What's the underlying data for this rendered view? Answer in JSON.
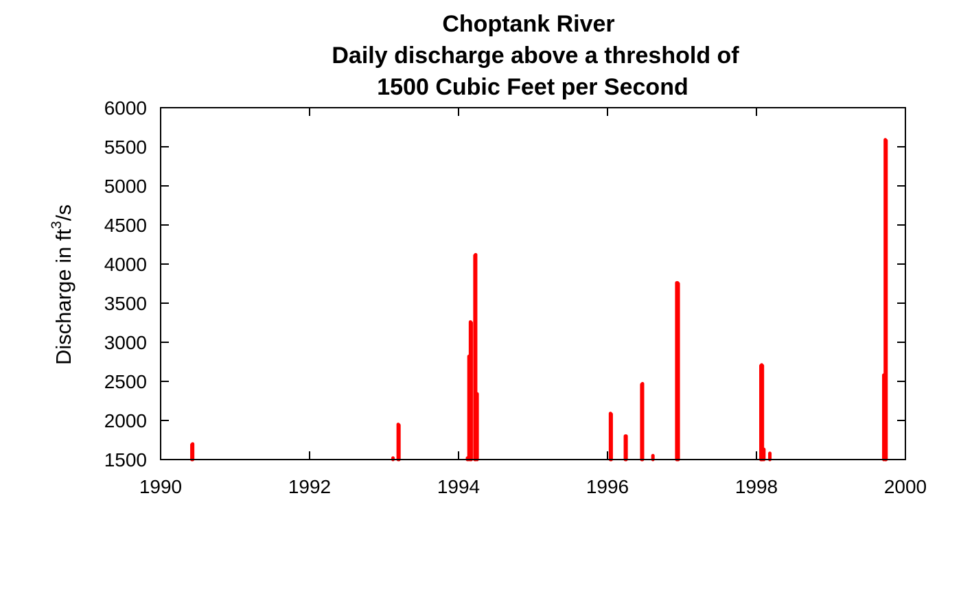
{
  "chart_data": {
    "type": "bar",
    "title_lines": [
      "Choptank River",
      "Daily discharge above a threshold of",
      "1500 Cubic Feet per Second"
    ],
    "ylabel": {
      "prefix": "Discharge in ft",
      "sup": "3",
      "suffix": "/s"
    },
    "xlabel": "",
    "xlim": [
      1990,
      2000
    ],
    "ylim": [
      1500,
      6000
    ],
    "x_ticks": [
      1990,
      1992,
      1994,
      1996,
      1998,
      2000
    ],
    "y_ticks": [
      1500,
      2000,
      2500,
      3000,
      3500,
      4000,
      4500,
      5000,
      5500,
      6000
    ],
    "grid": false,
    "baseline": 1500,
    "series_color": "#ff0000",
    "points": [
      {
        "x": 1990.42,
        "y": 1690
      },
      {
        "x": 1990.43,
        "y": 1700
      },
      {
        "x": 1993.12,
        "y": 1520
      },
      {
        "x": 1993.19,
        "y": 1950
      },
      {
        "x": 1993.2,
        "y": 1940
      },
      {
        "x": 1994.12,
        "y": 1520
      },
      {
        "x": 1994.14,
        "y": 2820
      },
      {
        "x": 1994.16,
        "y": 3260
      },
      {
        "x": 1994.17,
        "y": 3250
      },
      {
        "x": 1994.22,
        "y": 4110
      },
      {
        "x": 1994.23,
        "y": 4120
      },
      {
        "x": 1994.25,
        "y": 2340
      },
      {
        "x": 1996.04,
        "y": 2090
      },
      {
        "x": 1996.05,
        "y": 2080
      },
      {
        "x": 1996.24,
        "y": 1800
      },
      {
        "x": 1996.25,
        "y": 1800
      },
      {
        "x": 1996.46,
        "y": 2460
      },
      {
        "x": 1996.47,
        "y": 2470
      },
      {
        "x": 1996.61,
        "y": 1550
      },
      {
        "x": 1996.93,
        "y": 3760
      },
      {
        "x": 1996.94,
        "y": 3760
      },
      {
        "x": 1996.95,
        "y": 3750
      },
      {
        "x": 1998.06,
        "y": 2700
      },
      {
        "x": 1998.07,
        "y": 2710
      },
      {
        "x": 1998.08,
        "y": 2700
      },
      {
        "x": 1998.1,
        "y": 1630
      },
      {
        "x": 1998.18,
        "y": 1580
      },
      {
        "x": 1999.71,
        "y": 2580
      },
      {
        "x": 1999.73,
        "y": 5590
      },
      {
        "x": 1999.74,
        "y": 5580
      }
    ]
  }
}
